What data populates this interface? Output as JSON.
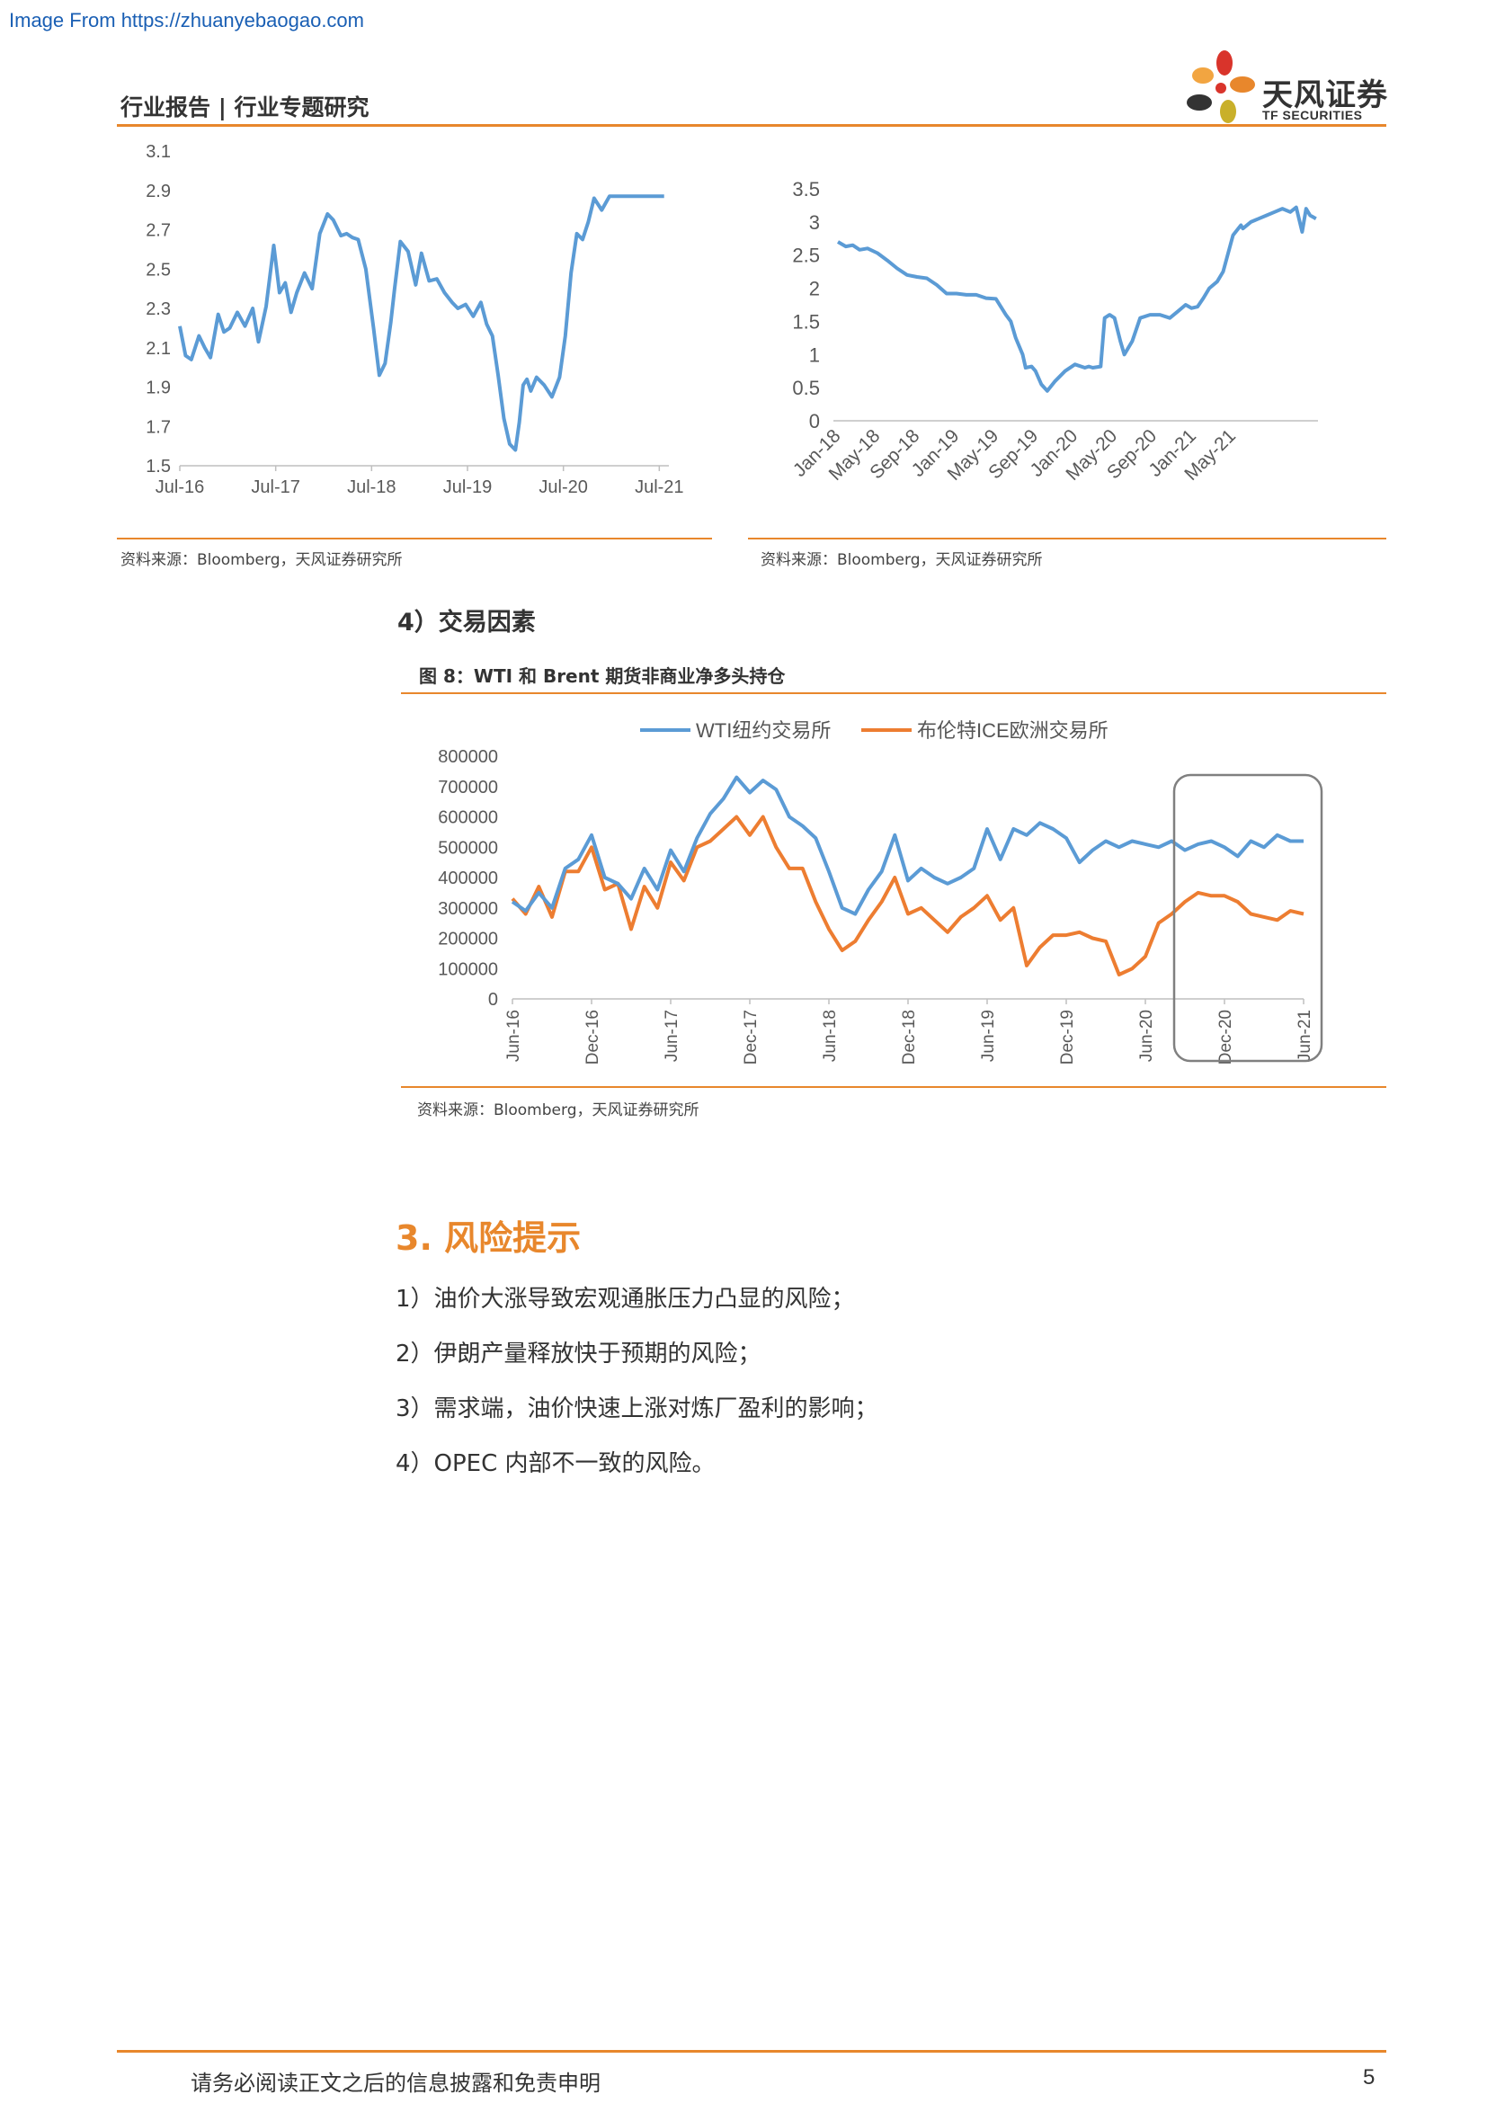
{
  "watermark": "Image From https://zhuanyebaogao.com",
  "header": {
    "title": "行业报告 | 行业专题研究",
    "logo_cn": "天风证券",
    "logo_en": "TF SECURITIES",
    "accent": "#e8872c"
  },
  "chart_left": {
    "source": "资料来源：Bloomberg，天风证券研究所"
  },
  "chart_right": {
    "source": "资料来源：Bloomberg，天风证券研究所"
  },
  "section4": {
    "heading": "4）交易因素",
    "figure_title": "图 8：WTI 和 Brent 期货非商业净多头持仓",
    "source": "资料来源：Bloomberg，天风证券研究所"
  },
  "risk": {
    "title": "3. 风险提示",
    "items": [
      "1）油价大涨导致宏观通胀压力凸显的风险；",
      "2）伊朗产量释放快于预期的风险；",
      "3）需求端，油价快速上涨对炼厂盈利的影响；",
      "4）OPEC 内部不一致的风险。"
    ]
  },
  "footer": {
    "disclaimer": "请务必阅读正文之后的信息披露和免责申明",
    "page": "5"
  },
  "chart_data": [
    {
      "type": "line",
      "x_ticks": [
        "Jul-16",
        "Jul-17",
        "Jul-18",
        "Jul-19",
        "Jul-20",
        "Jul-21"
      ],
      "y_ticks": [
        "1.5",
        "1.7",
        "1.9",
        "2.1",
        "2.3",
        "2.5",
        "2.7",
        "2.9",
        "3.1"
      ],
      "ylim": [
        1.5,
        3.1
      ],
      "xlim": [
        2016.5,
        2021.6
      ],
      "grid": false,
      "color": "#5b9bd5",
      "series": [
        {
          "x": [
            2016.5,
            2016.56,
            2016.62,
            2016.7,
            2016.76,
            2016.82,
            2016.9,
            2016.96,
            2017.02,
            2017.1,
            2017.18,
            2017.26,
            2017.32,
            2017.4,
            2017.48,
            2017.54,
            2017.6,
            2017.66,
            2017.72,
            2017.8,
            2017.88,
            2017.96,
            2018.04,
            2018.1,
            2018.18,
            2018.24,
            2018.3,
            2018.36,
            2018.44,
            2018.52,
            2018.58,
            2018.64,
            2018.7,
            2018.74,
            2018.8,
            2018.88,
            2018.96,
            2019.02,
            2019.1,
            2019.18,
            2019.26,
            2019.34,
            2019.4,
            2019.48,
            2019.56,
            2019.64,
            2019.7,
            2019.76,
            2019.82,
            2019.88,
            2019.94,
            2020.0,
            2020.04,
            2020.08,
            2020.12,
            2020.16,
            2020.22,
            2020.3,
            2020.38,
            2020.46,
            2020.52,
            2020.58,
            2020.64,
            2020.7,
            2020.76,
            2020.82,
            2020.9,
            2020.98,
            2021.04,
            2021.1,
            2021.16,
            2021.2,
            2021.26,
            2021.32,
            2021.38,
            2021.44,
            2021.5,
            2021.55
          ],
          "y": [
            2.21,
            2.06,
            2.04,
            2.16,
            2.1,
            2.05,
            2.27,
            2.18,
            2.2,
            2.28,
            2.21,
            2.3,
            2.13,
            2.31,
            2.62,
            2.38,
            2.43,
            2.28,
            2.38,
            2.48,
            2.4,
            2.68,
            2.78,
            2.75,
            2.67,
            2.68,
            2.66,
            2.65,
            2.5,
            2.2,
            1.96,
            2.02,
            2.23,
            2.4,
            2.64,
            2.59,
            2.42,
            2.58,
            2.44,
            2.45,
            2.38,
            2.33,
            2.3,
            2.32,
            2.26,
            2.33,
            2.22,
            2.16,
            1.96,
            1.74,
            1.61,
            1.58,
            1.72,
            1.91,
            1.94,
            1.88,
            1.95,
            1.91,
            1.85,
            1.95,
            2.16,
            2.48,
            2.68,
            2.65,
            2.74,
            2.86,
            2.8,
            2.87,
            2.87,
            2.87,
            2.87,
            2.87,
            2.87,
            2.87,
            2.87,
            2.87,
            2.87,
            2.87
          ]
        }
      ]
    },
    {
      "type": "line",
      "x_ticks": [
        "Jan-18",
        "May-18",
        "Sep-18",
        "Jan-19",
        "May-19",
        "Sep-19",
        "Jan-20",
        "May-20",
        "Sep-20",
        "Jan-21",
        "May-21"
      ],
      "y_ticks": [
        "0",
        "0.5",
        "1",
        "1.5",
        "2",
        "2.5",
        "3",
        "3.5"
      ],
      "ylim": [
        0,
        3.5
      ],
      "grid": false,
      "color": "#5b9bd5",
      "series": [
        {
          "x": [
            0,
            0.8,
            1.5,
            2.2,
            3.0,
            4.0,
            5.0,
            6.0,
            7.0,
            8.0,
            9.0,
            10.0,
            11.0,
            12.0,
            13.0,
            14.0,
            15.0,
            16.0,
            17.0,
            17.5,
            18.0,
            18.7,
            19.0,
            19.6,
            20.0,
            20.6,
            21.2,
            22.0,
            23.0,
            24.0,
            25.0,
            25.4,
            25.8,
            26.6,
            27.0,
            27.5,
            28.0,
            28.6,
            29.0,
            29.8,
            30.6,
            31.6,
            32.6,
            33.6,
            34.4,
            35.2,
            35.8,
            36.4,
            37.0,
            37.6,
            38.4,
            39.0,
            40.0,
            40.8,
            41.0,
            41.8,
            42.6,
            43.4,
            44.2,
            45.0,
            45.8,
            46.4,
            47.0,
            47.4,
            47.8,
            48.4
          ],
          "y": [
            2.7,
            2.63,
            2.65,
            2.58,
            2.6,
            2.53,
            2.42,
            2.3,
            2.2,
            2.17,
            2.15,
            2.05,
            1.92,
            1.92,
            1.9,
            1.9,
            1.85,
            1.84,
            1.6,
            1.5,
            1.25,
            1.0,
            0.8,
            0.82,
            0.75,
            0.55,
            0.45,
            0.6,
            0.75,
            0.85,
            0.8,
            0.82,
            0.8,
            0.82,
            1.55,
            1.6,
            1.55,
            1.2,
            1.0,
            1.2,
            1.55,
            1.6,
            1.6,
            1.55,
            1.65,
            1.75,
            1.7,
            1.72,
            1.85,
            2.0,
            2.1,
            2.25,
            2.8,
            2.95,
            2.9,
            3.0,
            3.05,
            3.1,
            3.15,
            3.2,
            3.15,
            3.22,
            2.85,
            3.2,
            3.1,
            3.05
          ]
        }
      ]
    },
    {
      "type": "line",
      "title": "图 8：WTI 和 Brent 期货非商业净多头持仓",
      "x_ticks": [
        "Jun-16",
        "Dec-16",
        "Jun-17",
        "Dec-17",
        "Jun-18",
        "Dec-18",
        "Jun-19",
        "Dec-19",
        "Jun-20",
        "Dec-20",
        "Jun-21"
      ],
      "y_ticks": [
        "0",
        "100000",
        "200000",
        "300000",
        "400000",
        "500000",
        "600000",
        "700000",
        "800000"
      ],
      "ylim": [
        0,
        800000
      ],
      "legend": "top",
      "grid": false,
      "series": [
        {
          "name": "WTI纽约交易所",
          "color": "#5b9bd5",
          "x": [
            0,
            1,
            2,
            3,
            4,
            5,
            6,
            7,
            8,
            9,
            10,
            11,
            12,
            13,
            14,
            15,
            16,
            17,
            18,
            19,
            20,
            21,
            22,
            23,
            24,
            25,
            26,
            27,
            28,
            29,
            30,
            31,
            32,
            33,
            34,
            35,
            36,
            37,
            38,
            39,
            40,
            41,
            42,
            43,
            44,
            45,
            46,
            47,
            48,
            49,
            50,
            51,
            52,
            53,
            54,
            55,
            56,
            57,
            58,
            59,
            60
          ],
          "y": [
            320000,
            290000,
            350000,
            300000,
            430000,
            460000,
            540000,
            400000,
            380000,
            330000,
            430000,
            360000,
            490000,
            420000,
            530000,
            610000,
            660000,
            730000,
            680000,
            720000,
            690000,
            600000,
            570000,
            530000,
            420000,
            300000,
            280000,
            360000,
            420000,
            540000,
            390000,
            430000,
            400000,
            380000,
            400000,
            430000,
            560000,
            460000,
            560000,
            540000,
            580000,
            560000,
            530000,
            450000,
            490000,
            520000,
            500000,
            520000,
            510000,
            500000,
            520000,
            490000,
            510000,
            520000,
            500000,
            470000,
            520000,
            500000,
            540000,
            520000,
            520000
          ]
        },
        {
          "name": "布伦特ICE欧洲交易所",
          "color": "#ed7d31",
          "x": [
            0,
            1,
            2,
            3,
            4,
            5,
            6,
            7,
            8,
            9,
            10,
            11,
            12,
            13,
            14,
            15,
            16,
            17,
            18,
            19,
            20,
            21,
            22,
            23,
            24,
            25,
            26,
            27,
            28,
            29,
            30,
            31,
            32,
            33,
            34,
            35,
            36,
            37,
            38,
            39,
            40,
            41,
            42,
            43,
            44,
            45,
            46,
            47,
            48,
            49,
            50,
            51,
            52,
            53,
            54,
            55,
            56,
            57,
            58,
            59,
            60
          ],
          "y": [
            330000,
            280000,
            370000,
            270000,
            420000,
            420000,
            500000,
            360000,
            380000,
            230000,
            370000,
            300000,
            450000,
            390000,
            500000,
            520000,
            560000,
            600000,
            540000,
            600000,
            500000,
            430000,
            430000,
            320000,
            230000,
            160000,
            190000,
            260000,
            320000,
            400000,
            280000,
            300000,
            260000,
            220000,
            270000,
            300000,
            340000,
            260000,
            300000,
            110000,
            170000,
            210000,
            210000,
            220000,
            200000,
            190000,
            80000,
            100000,
            140000,
            250000,
            280000,
            320000,
            350000,
            340000,
            340000,
            320000,
            280000,
            270000,
            260000,
            290000,
            280000
          ]
        }
      ]
    }
  ]
}
